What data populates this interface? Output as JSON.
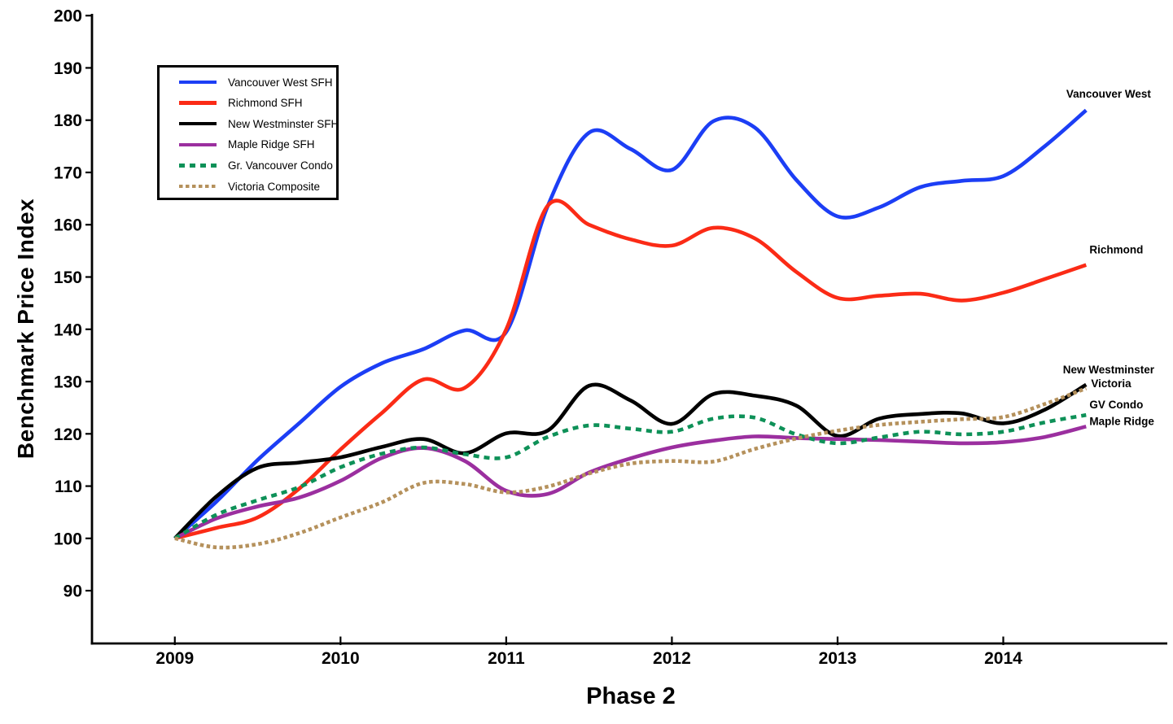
{
  "chart_data": {
    "type": "line",
    "title": "",
    "xlabel": "Phase 2",
    "ylabel": "Benchmark Price Index",
    "x_start": 2009,
    "x_step": 0.25,
    "x_ticks": [
      2009,
      2010,
      2011,
      2012,
      2013,
      2014
    ],
    "y_ticks": [
      90,
      100,
      110,
      120,
      130,
      140,
      150,
      160,
      170,
      180,
      190,
      200
    ],
    "xlim": [
      2008.5,
      2014.99
    ],
    "ylim": [
      79.9,
      200.34
    ],
    "grid": false,
    "legend_position": "top-left",
    "axis_color": "#000000",
    "series": [
      {
        "name": "Vancouver West SFH",
        "annotation": "Vancouver West",
        "color": "#1c3ef5",
        "line_style": "solid",
        "values": [
          100,
          107,
          115,
          122,
          129,
          133.5,
          136.2,
          139.8,
          139.5,
          163.5,
          177.6,
          174.5,
          170.5,
          179.8,
          178.6,
          168.6,
          161.6,
          163.3,
          167.2,
          168.4,
          169.3,
          175,
          181.9
        ]
      },
      {
        "name": "Richmond SFH",
        "annotation": "Richmond",
        "color": "#fb2b16",
        "line_style": "solid",
        "values": [
          100,
          102,
          104,
          109.5,
          117,
          124,
          130.4,
          128.8,
          140,
          163.6,
          160,
          157.2,
          156,
          159.4,
          157.4,
          151,
          146,
          146.4,
          146.8,
          145.5,
          147,
          149.6,
          152.3
        ]
      },
      {
        "name": "New Westminster SFH",
        "annotation": "New Westminster",
        "color": "#000000",
        "line_style": "solid",
        "values": [
          100,
          108,
          113.5,
          114.5,
          115.5,
          117.5,
          119,
          116.3,
          120.1,
          120.6,
          129.2,
          126.4,
          121.9,
          127.6,
          127.3,
          125.4,
          119.6,
          122.9,
          123.8,
          123.9,
          122,
          124.6,
          129.4
        ]
      },
      {
        "name": "Maple Ridge SFH",
        "annotation": "Maple Ridge",
        "color": "#9b2f9f",
        "line_style": "solid",
        "values": [
          100,
          103.8,
          106.1,
          107.8,
          111,
          115.4,
          117.3,
          114.8,
          109.1,
          108.5,
          112.6,
          115.3,
          117.4,
          118.7,
          119.5,
          119.2,
          119,
          118.8,
          118.5,
          118.2,
          118.4,
          119.4,
          121.4
        ]
      },
      {
        "name": "Gr. Vancouver Condo",
        "annotation": "GV Condo",
        "color": "#0e9158",
        "line_style": "dashed",
        "values": [
          100,
          104.5,
          107.3,
          109.8,
          113.6,
          116.2,
          117.4,
          116.1,
          115.5,
          119.4,
          121.6,
          121,
          120.4,
          122.9,
          123.1,
          119.9,
          118.2,
          119.3,
          120.4,
          119.9,
          120.4,
          122.2,
          123.6
        ]
      },
      {
        "name": "Victoria Composite",
        "annotation": "Victoria",
        "color": "#b5915c",
        "line_style": "dotted",
        "values": [
          100,
          98.3,
          98.9,
          101,
          104,
          106.9,
          110.6,
          110.4,
          108.8,
          109.9,
          112.4,
          114.3,
          114.8,
          114.7,
          117.1,
          119.1,
          120.6,
          121.7,
          122.3,
          122.8,
          123.2,
          125.7,
          128.7
        ]
      }
    ],
    "annotations": [
      {
        "text": "Vancouver West",
        "x": 2014.38,
        "y": 184.3
      },
      {
        "text": "Richmond",
        "x": 2014.52,
        "y": 154.5
      },
      {
        "text": "New Westminster",
        "x": 2014.36,
        "y": 131.6
      },
      {
        "text": "Victoria",
        "x": 2014.53,
        "y": 128.9
      },
      {
        "text": "GV Condo",
        "x": 2014.52,
        "y": 124.9
      },
      {
        "text": "Maple Ridge",
        "x": 2014.52,
        "y": 121.7
      }
    ]
  }
}
